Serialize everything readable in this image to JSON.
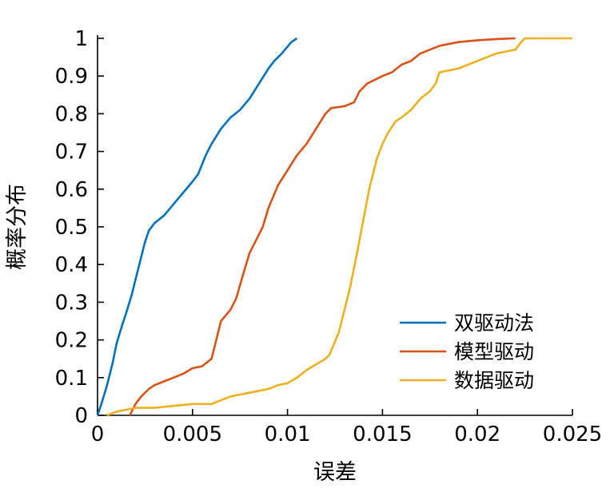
{
  "figure": {
    "background": "#ffffff",
    "axis_color": "#000000"
  },
  "chart_data": {
    "type": "line",
    "title": "",
    "xlabel": "误差",
    "ylabel": "概率分布",
    "xlim": [
      0,
      0.025
    ],
    "ylim": [
      0,
      1
    ],
    "x_tick_values": [
      0,
      0.005,
      0.01,
      0.015,
      0.02,
      0.025
    ],
    "x_tick_labels": [
      "0",
      "0.005",
      "0.01",
      "0.015",
      "0.02",
      "0.025"
    ],
    "y_tick_values": [
      0,
      0.1,
      0.2,
      0.3,
      0.4,
      0.5,
      0.6,
      0.7,
      0.8,
      0.9,
      1
    ],
    "y_tick_labels": [
      "0",
      "0.1",
      "0.2",
      "0.3",
      "0.4",
      "0.5",
      "0.6",
      "0.7",
      "0.8",
      "0.9",
      "1"
    ],
    "grid": false,
    "legend_position": "inside-lower-right",
    "series": [
      {
        "name": "双驱动法",
        "color": "#0072BD",
        "points": [
          [
            0,
            0
          ],
          [
            0.0002,
            0.03
          ],
          [
            0.0005,
            0.08
          ],
          [
            0.0008,
            0.14
          ],
          [
            0.001,
            0.19
          ],
          [
            0.0013,
            0.24
          ],
          [
            0.0015,
            0.27
          ],
          [
            0.0018,
            0.32
          ],
          [
            0.002,
            0.36
          ],
          [
            0.0023,
            0.42
          ],
          [
            0.0025,
            0.46
          ],
          [
            0.0027,
            0.49
          ],
          [
            0.003,
            0.51
          ],
          [
            0.0035,
            0.53
          ],
          [
            0.004,
            0.56
          ],
          [
            0.0045,
            0.59
          ],
          [
            0.005,
            0.62
          ],
          [
            0.0053,
            0.64
          ],
          [
            0.0057,
            0.69
          ],
          [
            0.006,
            0.72
          ],
          [
            0.0065,
            0.76
          ],
          [
            0.007,
            0.79
          ],
          [
            0.0075,
            0.81
          ],
          [
            0.008,
            0.84
          ],
          [
            0.0085,
            0.88
          ],
          [
            0.009,
            0.92
          ],
          [
            0.0093,
            0.94
          ],
          [
            0.0097,
            0.96
          ],
          [
            0.0102,
            0.99
          ],
          [
            0.0105,
            1
          ]
        ]
      },
      {
        "name": "模型驱动",
        "color": "#D95319",
        "points": [
          [
            0.0017,
            0
          ],
          [
            0.002,
            0.03
          ],
          [
            0.0023,
            0.05
          ],
          [
            0.0027,
            0.07
          ],
          [
            0.003,
            0.08
          ],
          [
            0.0035,
            0.09
          ],
          [
            0.004,
            0.1
          ],
          [
            0.0045,
            0.11
          ],
          [
            0.005,
            0.125
          ],
          [
            0.0055,
            0.13
          ],
          [
            0.006,
            0.15
          ],
          [
            0.0063,
            0.21
          ],
          [
            0.0065,
            0.25
          ],
          [
            0.007,
            0.28
          ],
          [
            0.0073,
            0.31
          ],
          [
            0.0077,
            0.38
          ],
          [
            0.008,
            0.43
          ],
          [
            0.0083,
            0.46
          ],
          [
            0.0087,
            0.5
          ],
          [
            0.009,
            0.55
          ],
          [
            0.0095,
            0.61
          ],
          [
            0.01,
            0.65
          ],
          [
            0.0105,
            0.69
          ],
          [
            0.011,
            0.72
          ],
          [
            0.0115,
            0.76
          ],
          [
            0.012,
            0.8
          ],
          [
            0.0123,
            0.815
          ],
          [
            0.013,
            0.82
          ],
          [
            0.0135,
            0.83
          ],
          [
            0.0138,
            0.86
          ],
          [
            0.0142,
            0.88
          ],
          [
            0.015,
            0.9
          ],
          [
            0.0155,
            0.91
          ],
          [
            0.016,
            0.93
          ],
          [
            0.0165,
            0.94
          ],
          [
            0.017,
            0.96
          ],
          [
            0.0175,
            0.97
          ],
          [
            0.018,
            0.98
          ],
          [
            0.019,
            0.99
          ],
          [
            0.02,
            0.995
          ],
          [
            0.021,
            0.998
          ],
          [
            0.022,
            1
          ]
        ]
      },
      {
        "name": "数据驱动",
        "color": "#EDB120",
        "points": [
          [
            0.0005,
            0
          ],
          [
            0.001,
            0.01
          ],
          [
            0.002,
            0.02
          ],
          [
            0.003,
            0.02
          ],
          [
            0.004,
            0.025
          ],
          [
            0.005,
            0.03
          ],
          [
            0.006,
            0.03
          ],
          [
            0.0065,
            0.04
          ],
          [
            0.007,
            0.05
          ],
          [
            0.008,
            0.06
          ],
          [
            0.009,
            0.07
          ],
          [
            0.0095,
            0.08
          ],
          [
            0.01,
            0.085
          ],
          [
            0.0105,
            0.1
          ],
          [
            0.011,
            0.12
          ],
          [
            0.0115,
            0.135
          ],
          [
            0.012,
            0.15
          ],
          [
            0.0122,
            0.16
          ],
          [
            0.0127,
            0.22
          ],
          [
            0.013,
            0.28
          ],
          [
            0.0133,
            0.34
          ],
          [
            0.0137,
            0.44
          ],
          [
            0.014,
            0.52
          ],
          [
            0.0143,
            0.6
          ],
          [
            0.0147,
            0.68
          ],
          [
            0.015,
            0.72
          ],
          [
            0.0153,
            0.75
          ],
          [
            0.0157,
            0.78
          ],
          [
            0.016,
            0.79
          ],
          [
            0.0165,
            0.81
          ],
          [
            0.017,
            0.84
          ],
          [
            0.0175,
            0.86
          ],
          [
            0.0178,
            0.88
          ],
          [
            0.018,
            0.91
          ],
          [
            0.0185,
            0.915
          ],
          [
            0.019,
            0.92
          ],
          [
            0.0195,
            0.93
          ],
          [
            0.02,
            0.94
          ],
          [
            0.0205,
            0.95
          ],
          [
            0.021,
            0.96
          ],
          [
            0.0215,
            0.965
          ],
          [
            0.022,
            0.97
          ],
          [
            0.0223,
            0.99
          ],
          [
            0.0225,
            1
          ],
          [
            0.025,
            1
          ]
        ]
      }
    ]
  }
}
